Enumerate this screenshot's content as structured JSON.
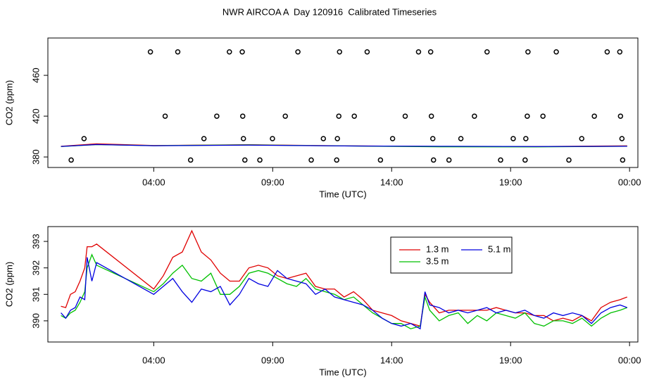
{
  "title": "NWR AIRCOA A  Day 120916  Calibrated Timeseries",
  "chart_data": [
    {
      "type": "line",
      "xlabel": "Time (UTC)",
      "ylabel": "CO2 (ppm)",
      "xlim": [
        -0.45,
        24.35
      ],
      "ylim": [
        369.7,
        496.6
      ],
      "xticks": [
        {
          "value": 4,
          "label": "04:00"
        },
        {
          "value": 9,
          "label": "09:00"
        },
        {
          "value": 14,
          "label": "14:00"
        },
        {
          "value": 19,
          "label": "19:00"
        },
        {
          "value": 24,
          "label": "00:00"
        }
      ],
      "yticks": [
        380,
        420,
        460
      ],
      "x": [
        0.1,
        1.6,
        4,
        8,
        12,
        16,
        20,
        23.9
      ],
      "series": [
        {
          "color": "#e00000",
          "values": [
            390.5,
            392.9,
            391.2,
            392,
            390.9,
            390.3,
            390.2,
            390.9
          ]
        },
        {
          "color": "#00c000",
          "values": [
            390.2,
            392.1,
            391.1,
            391.8,
            390.8,
            390,
            389.9,
            390.5
          ]
        },
        {
          "color": "#0000e0",
          "values": [
            390.3,
            392.2,
            391,
            391.6,
            390.8,
            390.5,
            390.2,
            390.5
          ]
        },
        {
          "color": "#000000",
          "marker": "o",
          "x": [
            3.86,
            5.01,
            7.18,
            7.72,
            10.06,
            11.81,
            12.97,
            15.13,
            15.64,
            18.01,
            19.73,
            20.92,
            23.06,
            23.59,
            4.48,
            6.65,
            7.74,
            9.53,
            11.78,
            12.43,
            14.57,
            15.67,
            17.48,
            19.7,
            20.36,
            22.52,
            23.62,
            1.07,
            6.11,
            7.77,
            8.99,
            11.13,
            11.72,
            14.04,
            15.73,
            16.91,
            19.11,
            19.64,
            21.99,
            23.68,
            0.53,
            5.55,
            7.83,
            8.46,
            10.62,
            11.69,
            13.53,
            15.76,
            16.41,
            18.58,
            19.61,
            21.45,
            23.71
          ],
          "values": [
            483,
            483,
            483,
            483,
            483,
            483,
            483,
            483,
            483,
            483,
            483,
            483,
            483,
            483,
            420,
            420,
            420,
            420,
            420,
            420,
            420,
            420,
            420,
            420,
            420,
            420,
            420,
            398,
            398,
            398,
            398,
            398,
            398,
            398,
            398,
            398,
            398,
            398,
            398,
            398,
            377,
            377,
            377,
            377,
            377,
            377,
            377,
            377,
            377,
            377,
            377,
            377,
            377
          ]
        }
      ]
    },
    {
      "type": "line",
      "xlabel": "Time (UTC)",
      "ylabel": "CO2 (ppm)",
      "xlim": [
        -0.45,
        24.35
      ],
      "ylim": [
        389.2,
        393.56
      ],
      "xticks": [
        {
          "value": 4,
          "label": "04:00"
        },
        {
          "value": 9,
          "label": "09:00"
        },
        {
          "value": 14,
          "label": "14:00"
        },
        {
          "value": 19,
          "label": "19:00"
        },
        {
          "value": 24,
          "label": "00:00"
        }
      ],
      "yticks": [
        390,
        391,
        392,
        393
      ],
      "legend": "top",
      "x": [
        0.1,
        0.3,
        0.5,
        0.7,
        0.9,
        1.1,
        1.2,
        1.4,
        1.6,
        4.0,
        4.4,
        4.8,
        5.2,
        5.6,
        6.0,
        6.4,
        6.8,
        7.2,
        7.6,
        8.0,
        8.4,
        8.8,
        9.2,
        9.6,
        10.0,
        10.4,
        10.8,
        11.2,
        11.6,
        12.0,
        12.4,
        12.8,
        13.2,
        13.6,
        14.0,
        14.4,
        14.8,
        15.2,
        15.4,
        15.6,
        16.0,
        16.4,
        16.8,
        17.2,
        17.6,
        18.0,
        18.4,
        18.8,
        19.2,
        19.6,
        20.0,
        20.4,
        20.8,
        21.2,
        21.6,
        22.0,
        22.4,
        22.8,
        23.2,
        23.6,
        23.9
      ],
      "series": [
        {
          "name": "1.3 m",
          "color": "#e00000",
          "values": [
            390.55,
            390.5,
            391.0,
            391.1,
            391.5,
            392.0,
            392.8,
            392.8,
            392.9,
            391.2,
            391.7,
            392.4,
            392.6,
            393.4,
            392.6,
            392.3,
            391.8,
            391.5,
            391.5,
            392.0,
            392.1,
            392.0,
            391.7,
            391.6,
            391.7,
            391.8,
            391.3,
            391.2,
            391.2,
            390.9,
            391.1,
            390.8,
            390.4,
            390.3,
            390.2,
            390.0,
            389.9,
            389.8,
            391.0,
            390.7,
            390.3,
            390.4,
            390.4,
            390.4,
            390.4,
            390.4,
            390.5,
            390.4,
            390.3,
            390.3,
            390.2,
            390.2,
            390.0,
            390.1,
            390.0,
            390.2,
            390.0,
            390.5,
            390.7,
            390.8,
            390.9
          ]
        },
        {
          "name": "3.5 m",
          "color": "#00c000",
          "values": [
            390.2,
            390.1,
            390.3,
            390.4,
            390.7,
            391.1,
            392.0,
            392.5,
            392.1,
            391.1,
            391.4,
            391.8,
            392.1,
            391.6,
            391.5,
            391.8,
            391.0,
            391.0,
            391.3,
            391.8,
            391.9,
            391.8,
            391.6,
            391.4,
            391.3,
            391.6,
            391.2,
            391.1,
            391.0,
            390.8,
            390.9,
            390.6,
            390.3,
            390.1,
            389.9,
            389.9,
            389.7,
            389.8,
            390.9,
            390.4,
            390.0,
            390.2,
            390.3,
            389.9,
            390.2,
            390.0,
            390.3,
            390.2,
            390.1,
            390.3,
            389.9,
            389.8,
            390.0,
            390.0,
            389.9,
            390.1,
            389.8,
            390.1,
            390.3,
            390.4,
            390.5
          ]
        },
        {
          "name": "5.1 m",
          "color": "#0000e0",
          "values": [
            390.3,
            390.1,
            390.4,
            390.5,
            390.9,
            390.8,
            392.4,
            391.5,
            392.2,
            391.0,
            391.3,
            391.6,
            391.1,
            390.7,
            391.2,
            391.1,
            391.3,
            390.6,
            391.0,
            391.6,
            391.4,
            391.3,
            391.9,
            391.6,
            391.5,
            391.4,
            391.0,
            391.2,
            390.9,
            390.8,
            390.7,
            390.6,
            390.4,
            390.1,
            389.9,
            389.8,
            389.9,
            389.7,
            391.1,
            390.6,
            390.5,
            390.3,
            390.4,
            390.3,
            390.4,
            390.5,
            390.3,
            390.4,
            390.3,
            390.4,
            390.2,
            390.1,
            390.3,
            390.2,
            390.3,
            390.2,
            389.9,
            390.3,
            390.5,
            390.6,
            390.5
          ]
        }
      ]
    }
  ]
}
